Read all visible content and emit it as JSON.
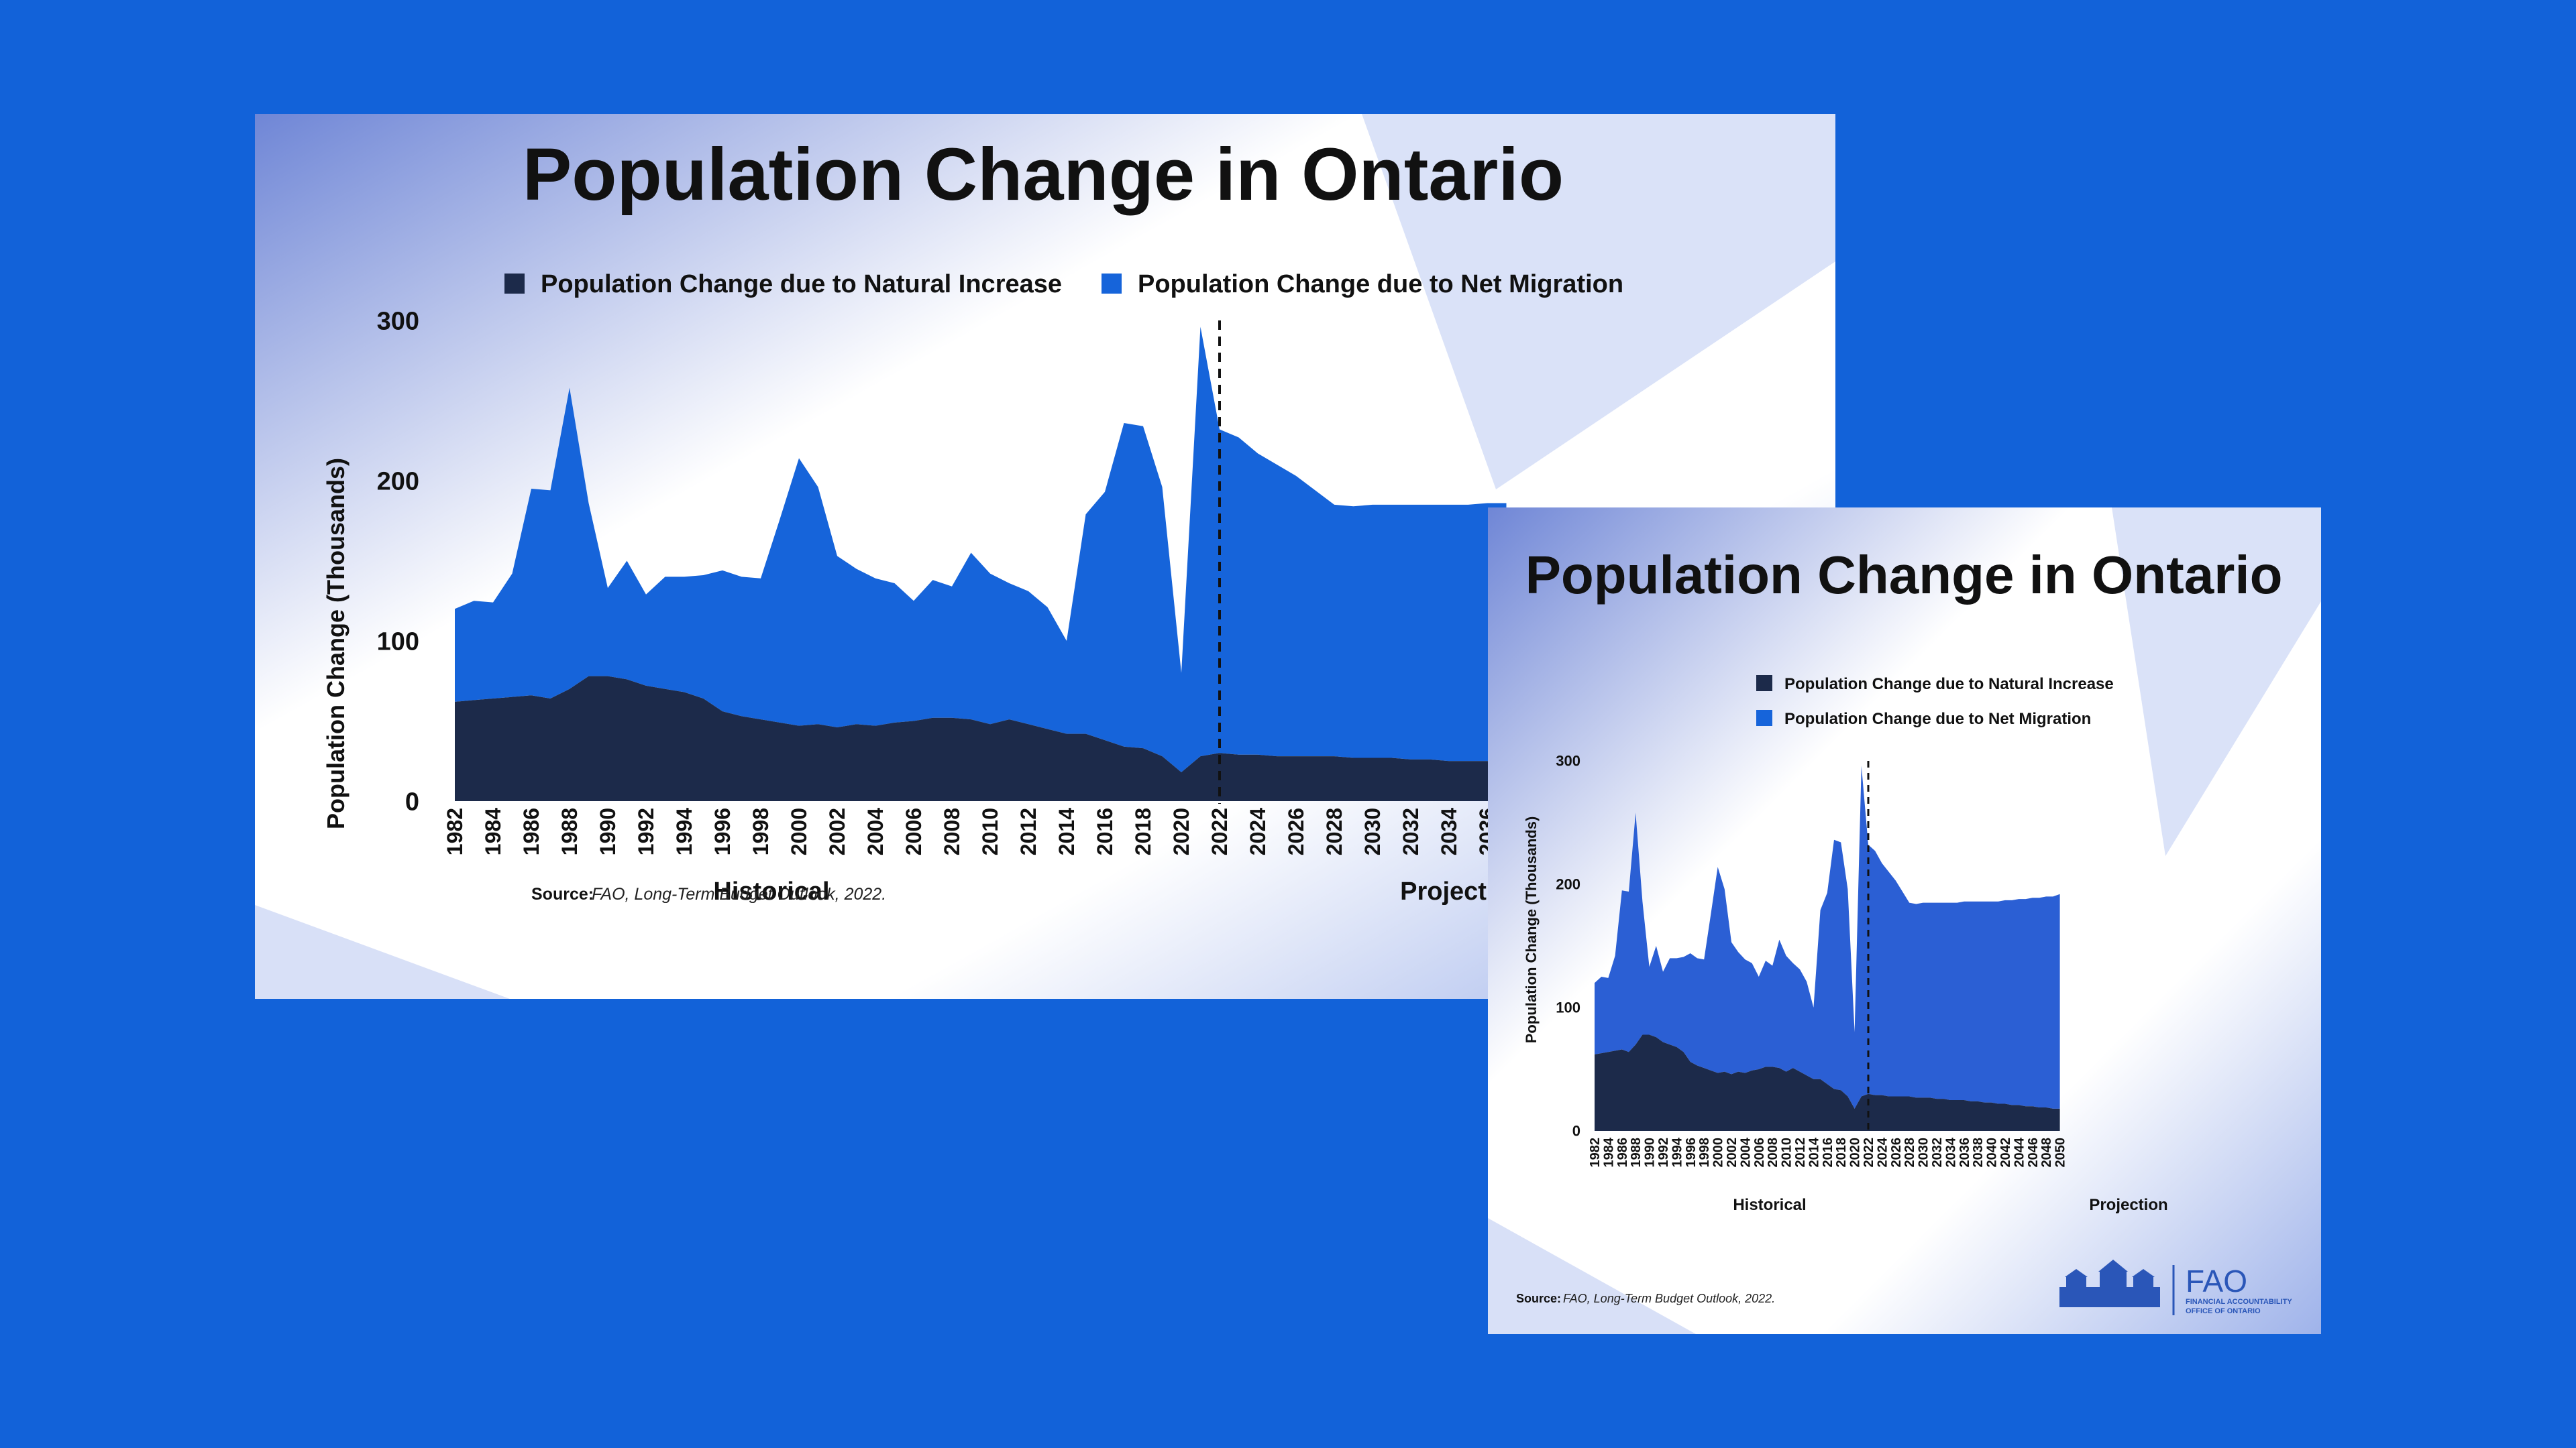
{
  "chart_data": [
    {
      "type": "area",
      "title": "Population Change in Ontario",
      "ylabel": "Population Change (Thousands)",
      "ylim": [
        0,
        300
      ],
      "yticks": [
        "0",
        "100",
        "200",
        "300"
      ],
      "legend_position": "top",
      "section_labels": [
        "Historical",
        "Projection"
      ],
      "divider_year": 2022,
      "source_label": "Source:",
      "source_text": "FAO, Long-Term Budget Outlook, 2022.",
      "x": [
        1982,
        1983,
        1984,
        1985,
        1986,
        1987,
        1988,
        1989,
        1990,
        1991,
        1992,
        1993,
        1994,
        1995,
        1996,
        1997,
        1998,
        1999,
        2000,
        2001,
        2002,
        2003,
        2004,
        2005,
        2006,
        2007,
        2008,
        2009,
        2010,
        2011,
        2012,
        2013,
        2014,
        2015,
        2016,
        2017,
        2018,
        2019,
        2020,
        2021,
        2022,
        2023,
        2024,
        2025,
        2026,
        2027,
        2028,
        2029,
        2030,
        2031,
        2032,
        2033,
        2034,
        2035,
        2036,
        2037,
        2038,
        2039,
        2040,
        2041,
        2042,
        2043,
        2044,
        2045,
        2046,
        2047,
        2048,
        2049,
        2050
      ],
      "xticks": [
        "1982",
        "1984",
        "1986",
        "1988",
        "1990",
        "1992",
        "1994",
        "1996",
        "1998",
        "2000",
        "2002",
        "2004",
        "2006",
        "2008",
        "2010",
        "2012",
        "2014",
        "2016",
        "2018",
        "2020",
        "2022",
        "2024",
        "2026",
        "2028",
        "2030",
        "2032",
        "2034",
        "2036"
      ],
      "series": [
        {
          "name": "Population Change due to Natural Increase",
          "color": "#1c2a4a",
          "values": [
            62,
            63,
            64,
            65,
            66,
            64,
            70,
            78,
            78,
            76,
            72,
            70,
            68,
            64,
            56,
            53,
            51,
            49,
            47,
            48,
            46,
            48,
            47,
            49,
            50,
            52,
            52,
            51,
            48,
            51,
            48,
            45,
            42,
            42,
            38,
            34,
            33,
            28,
            18,
            28,
            30,
            29,
            29,
            28,
            28,
            28,
            28,
            27,
            27,
            27,
            26,
            26,
            25,
            25,
            25,
            24,
            24,
            23,
            23,
            22,
            22,
            21,
            21,
            20,
            20,
            19,
            19,
            18,
            18
          ]
        },
        {
          "name": "Population Change due to Net Migration",
          "color": "#1664da",
          "values": [
            58,
            62,
            60,
            77,
            129,
            130,
            188,
            108,
            55,
            74,
            57,
            70,
            72,
            77,
            88,
            87,
            88,
            127,
            167,
            148,
            107,
            97,
            92,
            87,
            75,
            86,
            82,
            104,
            94,
            85,
            83,
            76,
            58,
            137,
            155,
            202,
            201,
            168,
            62,
            268,
            202,
            198,
            188,
            182,
            175,
            166,
            157,
            157,
            158,
            158,
            159,
            159,
            160,
            160,
            161,
            162,
            162,
            163,
            163,
            164,
            165,
            166,
            167,
            168,
            169,
            170,
            171,
            172,
            174
          ]
        }
      ]
    },
    {
      "type": "area",
      "title": "Population Change in Ontario",
      "ylabel": "Population Change (Thousands)",
      "ylim": [
        0,
        300
      ],
      "yticks": [
        "0",
        "100",
        "200",
        "300"
      ],
      "legend_position": "top",
      "section_labels": [
        "Historical",
        "Projection"
      ],
      "divider_year": 2022,
      "source_label": "Source:",
      "source_text": "FAO, Long-Term Budget Outlook, 2022.",
      "xticks": [
        "1982",
        "1984",
        "1986",
        "1988",
        "1990",
        "1992",
        "1994",
        "1996",
        "1998",
        "2000",
        "2002",
        "2004",
        "2006",
        "2008",
        "2010",
        "2012",
        "2014",
        "2016",
        "2018",
        "2020",
        "2022",
        "2024",
        "2026",
        "2028",
        "2030",
        "2032",
        "2034",
        "2036",
        "2038",
        "2040",
        "2042",
        "2044",
        "2046",
        "2048",
        "2050"
      ],
      "logo_text": "FAO",
      "logo_subtext": [
        "FINANCIAL ACCOUNTABILITY",
        "OFFICE OF ONTARIO"
      ],
      "series_ref": "same data as chart 1"
    }
  ]
}
